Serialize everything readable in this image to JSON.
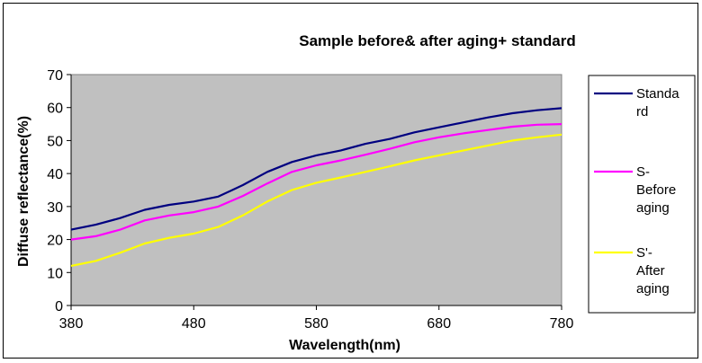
{
  "chart_data": {
    "type": "line",
    "title": "Sample before& after aging+ standard",
    "xlabel": "Wavelength(nm)",
    "ylabel": "Diffuse reflectance(%)",
    "xlim": [
      380,
      780
    ],
    "ylim": [
      0,
      70
    ],
    "x_ticks": [
      "380",
      "480",
      "580",
      "680",
      "780"
    ],
    "y_ticks": [
      "0",
      "10",
      "20",
      "30",
      "40",
      "50",
      "60",
      "70"
    ],
    "grid": false,
    "plot_background": "#c0c0c0",
    "legend_position": "right",
    "x": [
      380,
      400,
      420,
      440,
      460,
      480,
      500,
      520,
      540,
      560,
      580,
      600,
      620,
      640,
      660,
      680,
      700,
      720,
      740,
      760,
      780
    ],
    "series": [
      {
        "name": "Standard",
        "legend_lines": [
          "Standa",
          "rd"
        ],
        "color": "#000080",
        "values": [
          23,
          24.5,
          26.5,
          29,
          30.5,
          31.5,
          33,
          36.5,
          40.5,
          43.5,
          45.5,
          47,
          49,
          50.5,
          52.5,
          54,
          55.5,
          57,
          58.3,
          59.2,
          59.8
        ]
      },
      {
        "name": "S- Before aging",
        "legend_lines": [
          "S-",
          "Before",
          "aging"
        ],
        "color": "#ff00ff",
        "values": [
          20,
          21,
          23,
          25.8,
          27.3,
          28.3,
          30,
          33.2,
          37,
          40.5,
          42.5,
          44,
          45.7,
          47.5,
          49.5,
          51,
          52.2,
          53.2,
          54.2,
          54.8,
          55
        ]
      },
      {
        "name": "S'- After aging",
        "legend_lines": [
          "S'-",
          "After",
          "aging"
        ],
        "color": "#ffff00",
        "values": [
          12,
          13.5,
          16,
          18.8,
          20.5,
          21.8,
          23.8,
          27.3,
          31.5,
          35,
          37.2,
          38.8,
          40.5,
          42.2,
          44,
          45.5,
          47,
          48.5,
          50,
          51,
          51.8
        ]
      }
    ]
  }
}
